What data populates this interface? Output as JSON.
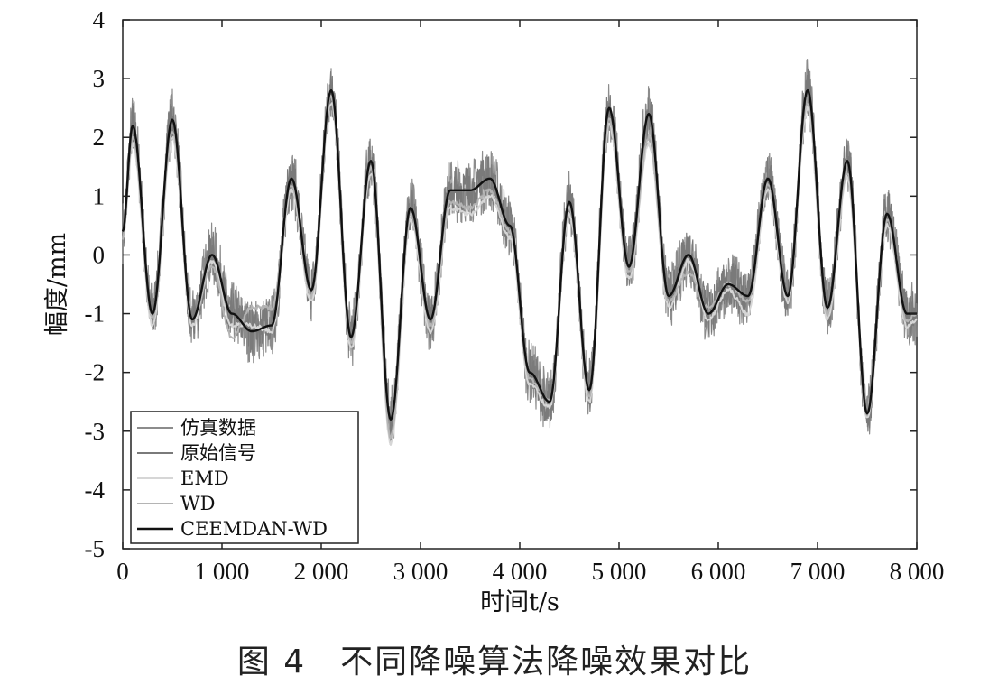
{
  "caption": "图 4　不同降噪算法降噪效果对比",
  "chart_data": {
    "type": "line",
    "xlabel": "时间t/s",
    "ylabel": "幅度/mm",
    "xlim": [
      0,
      8000
    ],
    "ylim": [
      -5,
      4
    ],
    "xticks": [
      0,
      1000,
      2000,
      3000,
      4000,
      5000,
      6000,
      7000,
      8000
    ],
    "xtick_labels": [
      "0",
      "1 000",
      "2 000",
      "3 000",
      "4 000",
      "5 000",
      "6 000",
      "7 000",
      "8 000"
    ],
    "yticks": [
      -5,
      -4,
      -3,
      -2,
      -1,
      0,
      1,
      2,
      3,
      4
    ],
    "ytick_labels": [
      "-5",
      "-4",
      "-3",
      "-2",
      "-1",
      "0",
      "1",
      "2",
      "3",
      "4"
    ],
    "grid": false,
    "legend_position": "bottom-left",
    "series": [
      {
        "name": "仿真数据",
        "color": "#8c8c8c",
        "style": "noisy",
        "x": [
          0,
          100,
          300,
          500,
          700,
          900,
          1100,
          1300,
          1500,
          1700,
          1900,
          2100,
          2300,
          2500,
          2700,
          2900,
          3100,
          3300,
          3500,
          3700,
          3900,
          4100,
          4300,
          4500,
          4700,
          4900,
          5100,
          5300,
          5500,
          5700,
          5900,
          6100,
          6300,
          6500,
          6700,
          6900,
          7100,
          7300,
          7500,
          7700,
          7900,
          8000
        ],
        "values": [
          0.4,
          2.2,
          -1.0,
          2.3,
          -1.1,
          0.0,
          -1.0,
          -1.3,
          -1.2,
          1.3,
          -0.6,
          2.8,
          -1.4,
          1.6,
          -2.8,
          0.8,
          -1.1,
          1.1,
          1.1,
          1.3,
          0.5,
          -2.0,
          -2.5,
          0.9,
          -2.3,
          2.5,
          -0.2,
          2.4,
          -0.7,
          0.0,
          -1.0,
          -0.5,
          -0.7,
          1.3,
          -0.7,
          2.8,
          -0.9,
          1.6,
          -2.7,
          0.7,
          -1.0,
          -1.0
        ]
      },
      {
        "name": "原始信号",
        "color": "#7a7a7a",
        "style": "noisy",
        "x": [
          0,
          100,
          300,
          500,
          700,
          900,
          1100,
          1300,
          1500,
          1700,
          1900,
          2100,
          2300,
          2500,
          2700,
          2900,
          3100,
          3300,
          3500,
          3700,
          3900,
          4100,
          4300,
          4500,
          4700,
          4900,
          5100,
          5300,
          5500,
          5700,
          5900,
          6100,
          6300,
          6500,
          6700,
          6900,
          7100,
          7300,
          7500,
          7700,
          7900,
          8000
        ],
        "values": [
          0.4,
          2.2,
          -1.0,
          2.3,
          -1.1,
          0.0,
          -1.0,
          -1.3,
          -1.2,
          1.3,
          -0.6,
          2.8,
          -1.4,
          1.6,
          -2.8,
          0.8,
          -1.1,
          1.1,
          1.1,
          1.3,
          0.5,
          -2.0,
          -2.5,
          0.9,
          -2.3,
          2.5,
          -0.2,
          2.4,
          -0.7,
          0.0,
          -1.0,
          -0.5,
          -0.7,
          1.3,
          -0.7,
          2.8,
          -0.9,
          1.6,
          -2.7,
          0.7,
          -1.0,
          -1.0
        ]
      },
      {
        "name": "EMD",
        "color": "#d6d6d6",
        "style": "smooth",
        "x": [
          0,
          100,
          300,
          500,
          700,
          900,
          1100,
          1300,
          1500,
          1700,
          1900,
          2100,
          2300,
          2500,
          2700,
          2900,
          3100,
          3300,
          3500,
          3700,
          3900,
          4100,
          4300,
          4500,
          4700,
          4900,
          5100,
          5300,
          5500,
          5700,
          5900,
          6100,
          6300,
          6500,
          6700,
          6900,
          7100,
          7300,
          7500,
          7700,
          7900,
          8000
        ],
        "values": [
          0.3,
          1.9,
          -1.2,
          2.0,
          -1.2,
          -0.1,
          -1.2,
          -1.2,
          -1.3,
          1.1,
          -0.8,
          2.6,
          -1.6,
          1.4,
          -3.2,
          0.6,
          -1.3,
          0.8,
          0.7,
          1.0,
          0.3,
          -2.2,
          -2.6,
          0.7,
          -2.5,
          2.2,
          -0.4,
          1.9,
          -0.9,
          -0.1,
          -1.1,
          -0.6,
          -1.0,
          1.1,
          -0.8,
          2.5,
          -1.1,
          1.3,
          -2.8,
          0.5,
          -1.2,
          -1.1
        ]
      },
      {
        "name": "WD",
        "color": "#b4b4b4",
        "style": "smooth",
        "x": [
          0,
          100,
          300,
          500,
          700,
          900,
          1100,
          1300,
          1500,
          1700,
          1900,
          2100,
          2300,
          2500,
          2700,
          2900,
          3100,
          3300,
          3500,
          3700,
          3900,
          4100,
          4300,
          4500,
          4700,
          4900,
          5100,
          5300,
          5500,
          5700,
          5900,
          6100,
          6300,
          6500,
          6700,
          6900,
          7100,
          7300,
          7500,
          7700,
          7900,
          8000
        ],
        "values": [
          0.3,
          2.0,
          -1.1,
          2.1,
          -1.1,
          -0.2,
          -1.4,
          -0.9,
          -0.9,
          1.2,
          -0.7,
          2.7,
          -1.5,
          1.5,
          -3.1,
          0.7,
          -1.2,
          0.9,
          0.8,
          1.1,
          0.4,
          -2.1,
          -2.5,
          0.8,
          -2.4,
          2.3,
          -0.3,
          2.0,
          -0.8,
          -0.3,
          -0.9,
          -0.5,
          -0.8,
          1.2,
          -0.7,
          2.6,
          -1.0,
          1.4,
          -2.7,
          0.6,
          -1.1,
          -1.0
        ]
      },
      {
        "name": "CEEMDAN-WD",
        "color": "#111111",
        "style": "smooth",
        "x": [
          0,
          100,
          300,
          500,
          700,
          900,
          1100,
          1300,
          1500,
          1700,
          1900,
          2100,
          2300,
          2500,
          2700,
          2900,
          3100,
          3300,
          3500,
          3700,
          3900,
          4100,
          4300,
          4500,
          4700,
          4900,
          5100,
          5300,
          5500,
          5700,
          5900,
          6100,
          6300,
          6500,
          6700,
          6900,
          7100,
          7300,
          7500,
          7700,
          7900,
          8000
        ],
        "values": [
          0.4,
          2.2,
          -1.0,
          2.3,
          -1.1,
          0.0,
          -1.0,
          -1.3,
          -1.2,
          1.3,
          -0.6,
          2.8,
          -1.4,
          1.6,
          -2.8,
          0.8,
          -1.1,
          1.1,
          1.1,
          1.3,
          0.5,
          -2.0,
          -2.5,
          0.9,
          -2.3,
          2.5,
          -0.2,
          2.4,
          -0.7,
          0.0,
          -1.0,
          -0.5,
          -0.7,
          1.3,
          -0.7,
          2.8,
          -0.9,
          1.6,
          -2.7,
          0.7,
          -1.0,
          -1.0
        ]
      }
    ]
  }
}
